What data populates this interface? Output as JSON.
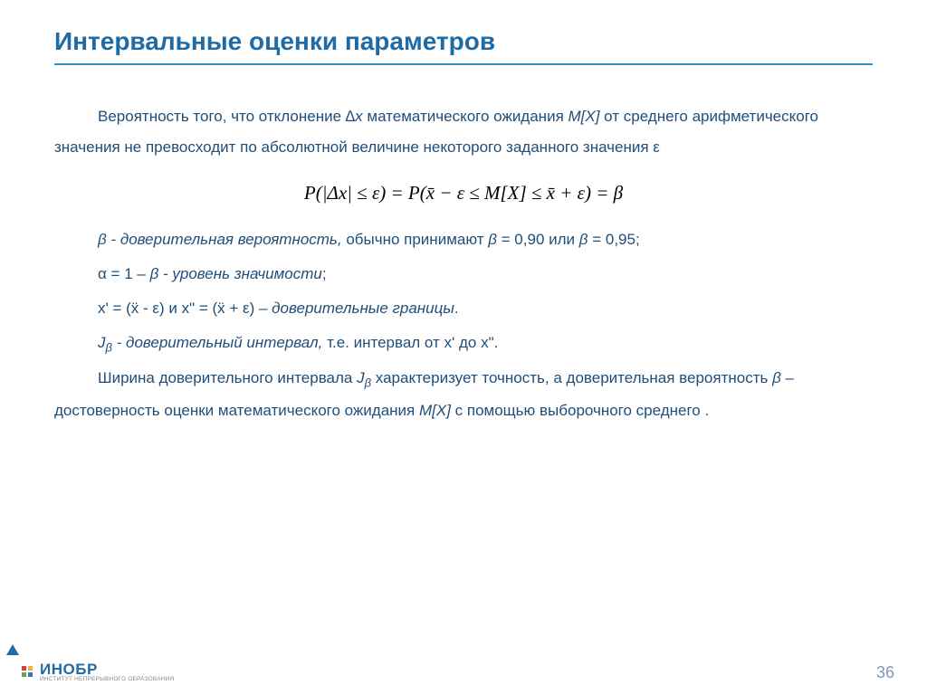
{
  "title": "Интервальные оценки параметров",
  "p1_a": "Вероятность того, что отклонение ",
  "p1_delta": "∆x",
  "p1_b": " математического ожидания ",
  "p1_mx": "M[X]",
  "p1_c": " от среднего арифметического значения  не превосходит по абсолютной величине некоторого заданного значения ε",
  "formula": "P(|Δx|  ≤  ε)  =  P(x̄ − ε  ≤  M[X]  ≤  x̄  +  ε)  =  β",
  "p2_a": "β  - доверительная вероятность,",
  "p2_b": " обычно принимают ",
  "p2_c": "β",
  "p2_d": " = 0,90 или ",
  "p2_e": "β",
  "p2_f": " = 0,95;",
  "p3_a": "α = 1 – ",
  "p3_b": "β  - уровень значимости",
  "p3_c": ";",
  "p4_a": "x' = (ẍ - ε) и x\" = (ẍ + ε) – ",
  "p4_b": "доверительные границы",
  "p4_c": ".",
  "p5_a": "J",
  "p5_sub": "β",
  "p5_b": "  - доверительный интервал,",
  "p5_c": " т.е. интервал от  x'  до  x\".",
  "p6_a": "Ширина доверительного интервала  ",
  "p6_j": "J",
  "p6_sub": "β",
  "p6_b": "  характеризует точность, а доверительная вероятность  ",
  "p6_c": "β",
  "p6_d": "  –  достоверность оценки математического ожидания ",
  "p6_mx": "M[X]",
  "p6_e": " с помощью выборочного среднего .",
  "logo_main": "ИНОБР",
  "logo_sub": "ИНСТИТУТ НЕПРЕРЫВНОГО ОБРАЗОВАНИЯ",
  "page_number": "36",
  "colors": {
    "title": "#1f6ba5",
    "border": "#3a8cc5",
    "body_text": "#1f4e79",
    "formula": "#000000",
    "page_num": "#7f99b5",
    "dot_red": "#d9403a",
    "dot_yellow": "#e8b83e",
    "dot_green": "#5fa84e",
    "dot_blue": "#3a76b8"
  }
}
